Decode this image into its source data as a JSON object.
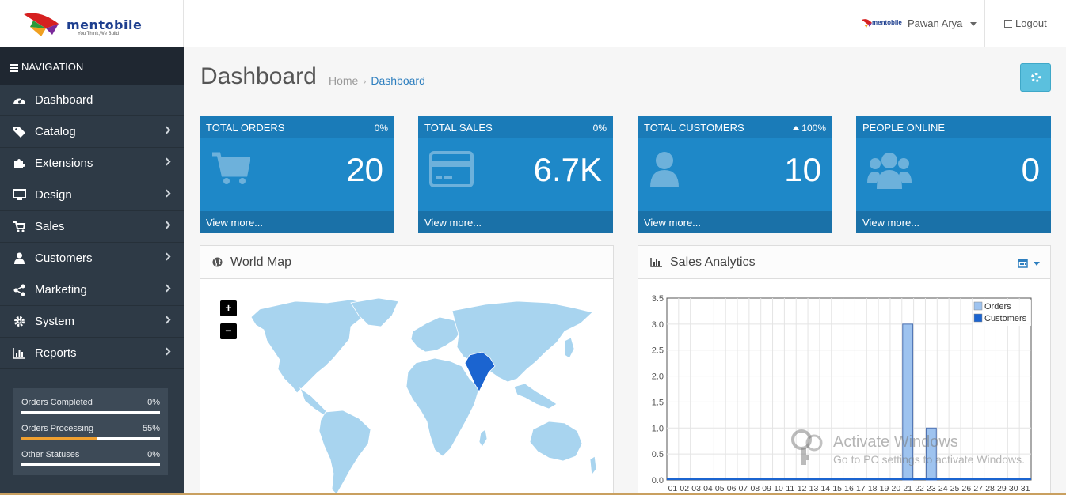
{
  "brand": {
    "name": "mentobile",
    "tagline": "You Think,We Build"
  },
  "header": {
    "user_name": "Pawan Arya",
    "user_logo": "mentobile",
    "logout_label": "Logout"
  },
  "nav": {
    "title": "NAVIGATION",
    "items": [
      {
        "label": "Dashboard",
        "icon": "dashboard-icon"
      },
      {
        "label": "Catalog",
        "icon": "tag-icon"
      },
      {
        "label": "Extensions",
        "icon": "puzzle-icon"
      },
      {
        "label": "Design",
        "icon": "monitor-icon"
      },
      {
        "label": "Sales",
        "icon": "cart-icon"
      },
      {
        "label": "Customers",
        "icon": "user-icon"
      },
      {
        "label": "Marketing",
        "icon": "share-icon"
      },
      {
        "label": "System",
        "icon": "gear-icon"
      },
      {
        "label": "Reports",
        "icon": "bar-chart-icon"
      }
    ],
    "stats": [
      {
        "label": "Orders Completed",
        "value": "0%",
        "fraction": 0
      },
      {
        "label": "Orders Processing",
        "value": "55%",
        "fraction": 0.55
      },
      {
        "label": "Other Statuses",
        "value": "0%",
        "fraction": 0
      }
    ]
  },
  "page": {
    "title": "Dashboard",
    "breadcrumb": [
      "Home",
      "Dashboard"
    ]
  },
  "tiles": [
    {
      "title": "TOTAL ORDERS",
      "pct": "0%",
      "value": "20",
      "footer": "View more...",
      "icon": "cart-icon"
    },
    {
      "title": "TOTAL SALES",
      "pct": "0%",
      "value": "6.7K",
      "footer": "View more...",
      "icon": "credit-card-icon"
    },
    {
      "title": "TOTAL CUSTOMERS",
      "pct": "100%",
      "value": "10",
      "footer": "View more...",
      "icon": "user-icon"
    },
    {
      "title": "PEOPLE ONLINE",
      "pct": "",
      "value": "0",
      "footer": "View more...",
      "icon": "users-icon"
    }
  ],
  "map_panel": {
    "title": "World Map",
    "zoom_in": "+",
    "zoom_out": "−"
  },
  "analytics_panel": {
    "title": "Sales Analytics"
  },
  "colors": {
    "accent": "#1e88c8",
    "sidebar": "#2e3a46",
    "map_land": "#a8d4ef",
    "map_highlight": "#1b64d0"
  },
  "chart_data": {
    "type": "bar",
    "categories": [
      "01",
      "02",
      "03",
      "04",
      "05",
      "06",
      "07",
      "08",
      "09",
      "10",
      "11",
      "12",
      "13",
      "14",
      "15",
      "16",
      "17",
      "18",
      "19",
      "20",
      "21",
      "22",
      "23",
      "24",
      "25",
      "26",
      "27",
      "28",
      "29",
      "30",
      "31"
    ],
    "series": [
      {
        "name": "Orders",
        "values": [
          0,
          0,
          0,
          0,
          0,
          0,
          0,
          0,
          0,
          0,
          0,
          0,
          0,
          0,
          0,
          0,
          0,
          0,
          0,
          0,
          3,
          0,
          1,
          0,
          0,
          0,
          0,
          0,
          0,
          0,
          0
        ]
      },
      {
        "name": "Customers",
        "values": [
          0,
          0,
          0,
          0,
          0,
          0,
          0,
          0,
          0,
          0,
          0,
          0,
          0,
          0,
          0,
          0,
          0,
          0,
          0,
          0,
          0,
          0,
          0,
          0,
          0,
          0,
          0,
          0,
          0,
          0,
          0
        ]
      }
    ],
    "yticks": [
      "0.0",
      "0.5",
      "1.0",
      "1.5",
      "2.0",
      "2.5",
      "3.0",
      "3.5"
    ],
    "ylim": [
      0,
      3.5
    ],
    "grid": true,
    "legend": "top-right"
  },
  "watermark": {
    "line1": "Activate Windows",
    "line2": "Go to PC settings to activate Windows."
  }
}
